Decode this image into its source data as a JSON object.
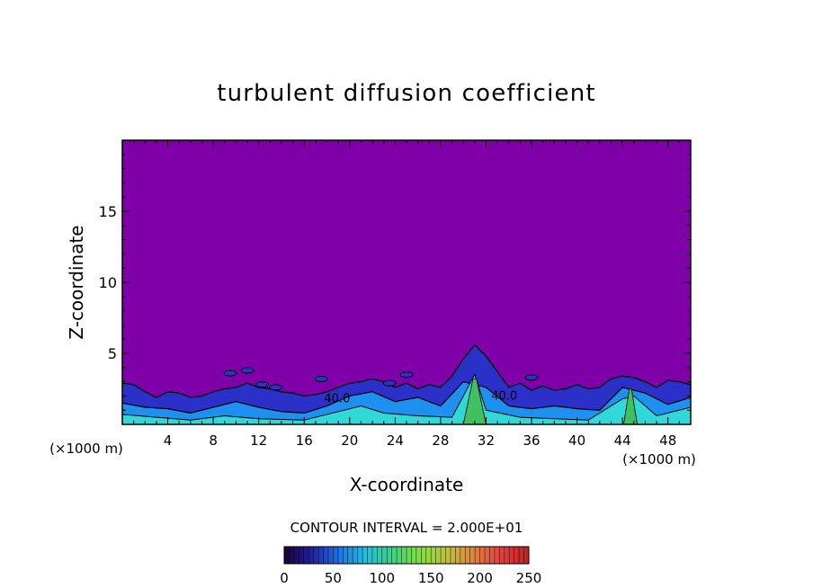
{
  "chart_data": {
    "type": "heatmap",
    "title": "turbulent diffusion coefficient",
    "xlabel": "X-coordinate",
    "ylabel": "Z-coordinate",
    "x_unit": "(×1000 m)",
    "xlim": [
      0,
      50
    ],
    "ylim": [
      0,
      20
    ],
    "x_ticks": [
      4,
      8,
      12,
      16,
      20,
      24,
      28,
      32,
      36,
      40,
      44,
      48
    ],
    "y_ticks": [
      5,
      10,
      15
    ],
    "contour_interval_label": "CONTOUR INTERVAL = 2.000E+01",
    "contour_labels": [
      {
        "text": "40.0",
        "x": 18.9,
        "z": 1.8
      },
      {
        "text": "40.0",
        "x": 33.6,
        "z": 2.0
      }
    ],
    "colorbar": {
      "range": [
        0,
        250
      ],
      "ticks": [
        0,
        50,
        100,
        150,
        200,
        250
      ],
      "colors": [
        "#1a0033",
        "#2020a0",
        "#2070e0",
        "#20c0e0",
        "#40d080",
        "#80e040",
        "#c0c040",
        "#e08040",
        "#e04040",
        "#c02020"
      ]
    },
    "colors": {
      "background_field": "#7f00a8",
      "low_layer": "#2a30c8",
      "mid": "#1e90f0",
      "high": "#30d8d8",
      "peak": "#40c060"
    },
    "boundary_layer_top": [
      [
        0,
        2.9
      ],
      [
        1,
        2.8
      ],
      [
        2,
        2.3
      ],
      [
        3,
        1.9
      ],
      [
        4,
        2.3
      ],
      [
        5,
        2.2
      ],
      [
        6,
        1.9
      ],
      [
        7,
        2.0
      ],
      [
        8,
        2.3
      ],
      [
        9,
        2.5
      ],
      [
        10,
        2.6
      ],
      [
        11,
        2.9
      ],
      [
        12,
        2.6
      ],
      [
        13,
        2.5
      ],
      [
        14,
        2.3
      ],
      [
        15,
        2.2
      ],
      [
        16,
        2.0
      ],
      [
        17,
        2.1
      ],
      [
        18,
        2.3
      ],
      [
        19,
        2.6
      ],
      [
        20,
        2.9
      ],
      [
        21,
        3.0
      ],
      [
        22,
        3.2
      ],
      [
        23,
        3.0
      ],
      [
        24,
        2.6
      ],
      [
        25,
        2.9
      ],
      [
        26,
        2.5
      ],
      [
        27,
        2.8
      ],
      [
        28,
        2.6
      ],
      [
        29,
        3.4
      ],
      [
        30,
        4.6
      ],
      [
        31,
        5.6
      ],
      [
        32,
        4.8
      ],
      [
        33,
        3.7
      ],
      [
        34,
        2.6
      ],
      [
        35,
        2.9
      ],
      [
        36,
        2.4
      ],
      [
        37,
        2.7
      ],
      [
        38,
        2.4
      ],
      [
        39,
        2.5
      ],
      [
        40,
        2.8
      ],
      [
        41,
        2.5
      ],
      [
        42,
        2.6
      ],
      [
        43,
        3.2
      ],
      [
        44,
        3.4
      ],
      [
        45,
        3.3
      ],
      [
        46,
        3.0
      ],
      [
        47,
        2.6
      ],
      [
        48,
        3.1
      ],
      [
        49,
        3.0
      ],
      [
        50,
        2.8
      ]
    ],
    "mid_layer_top": [
      [
        0,
        1.5
      ],
      [
        2,
        1.2
      ],
      [
        4,
        1.1
      ],
      [
        6,
        0.8
      ],
      [
        8,
        1.2
      ],
      [
        10,
        1.6
      ],
      [
        12,
        1.2
      ],
      [
        14,
        0.9
      ],
      [
        16,
        0.8
      ],
      [
        18,
        1.3
      ],
      [
        20,
        2.0
      ],
      [
        22,
        2.3
      ],
      [
        24,
        1.6
      ],
      [
        26,
        1.9
      ],
      [
        28,
        1.3
      ],
      [
        30,
        3.0
      ],
      [
        32,
        2.6
      ],
      [
        34,
        1.3
      ],
      [
        36,
        1.1
      ],
      [
        38,
        1.3
      ],
      [
        40,
        1.1
      ],
      [
        42,
        1.0
      ],
      [
        44,
        2.6
      ],
      [
        46,
        2.2
      ],
      [
        48,
        1.4
      ],
      [
        50,
        1.9
      ]
    ],
    "high_layer_top": [
      [
        0,
        0.7
      ],
      [
        3,
        0.5
      ],
      [
        6,
        0.3
      ],
      [
        9,
        0.6
      ],
      [
        12,
        0.4
      ],
      [
        16,
        0.3
      ],
      [
        19,
        0.9
      ],
      [
        21,
        1.3
      ],
      [
        23,
        0.8
      ],
      [
        26,
        0.6
      ],
      [
        29,
        0.5
      ],
      [
        31,
        3.5
      ],
      [
        32,
        1.0
      ],
      [
        35,
        0.5
      ],
      [
        38,
        0.4
      ],
      [
        41,
        0.3
      ],
      [
        44,
        1.8
      ],
      [
        45,
        2.0
      ],
      [
        47,
        0.6
      ],
      [
        50,
        1.2
      ]
    ],
    "plumes": [
      {
        "x_center": 31.0,
        "half_width": 0.5,
        "top": 3.2
      },
      {
        "x_center": 44.7,
        "half_width": 0.3,
        "top": 2.5
      }
    ],
    "blobs": [
      {
        "x": 11.0,
        "z": 3.8
      },
      {
        "x": 12.3,
        "z": 2.8
      },
      {
        "x": 13.5,
        "z": 2.6
      },
      {
        "x": 9.5,
        "z": 3.6
      },
      {
        "x": 25.0,
        "z": 3.5
      },
      {
        "x": 17.5,
        "z": 3.2
      },
      {
        "x": 36.0,
        "z": 3.3
      },
      {
        "x": 23.5,
        "z": 2.9
      }
    ]
  }
}
